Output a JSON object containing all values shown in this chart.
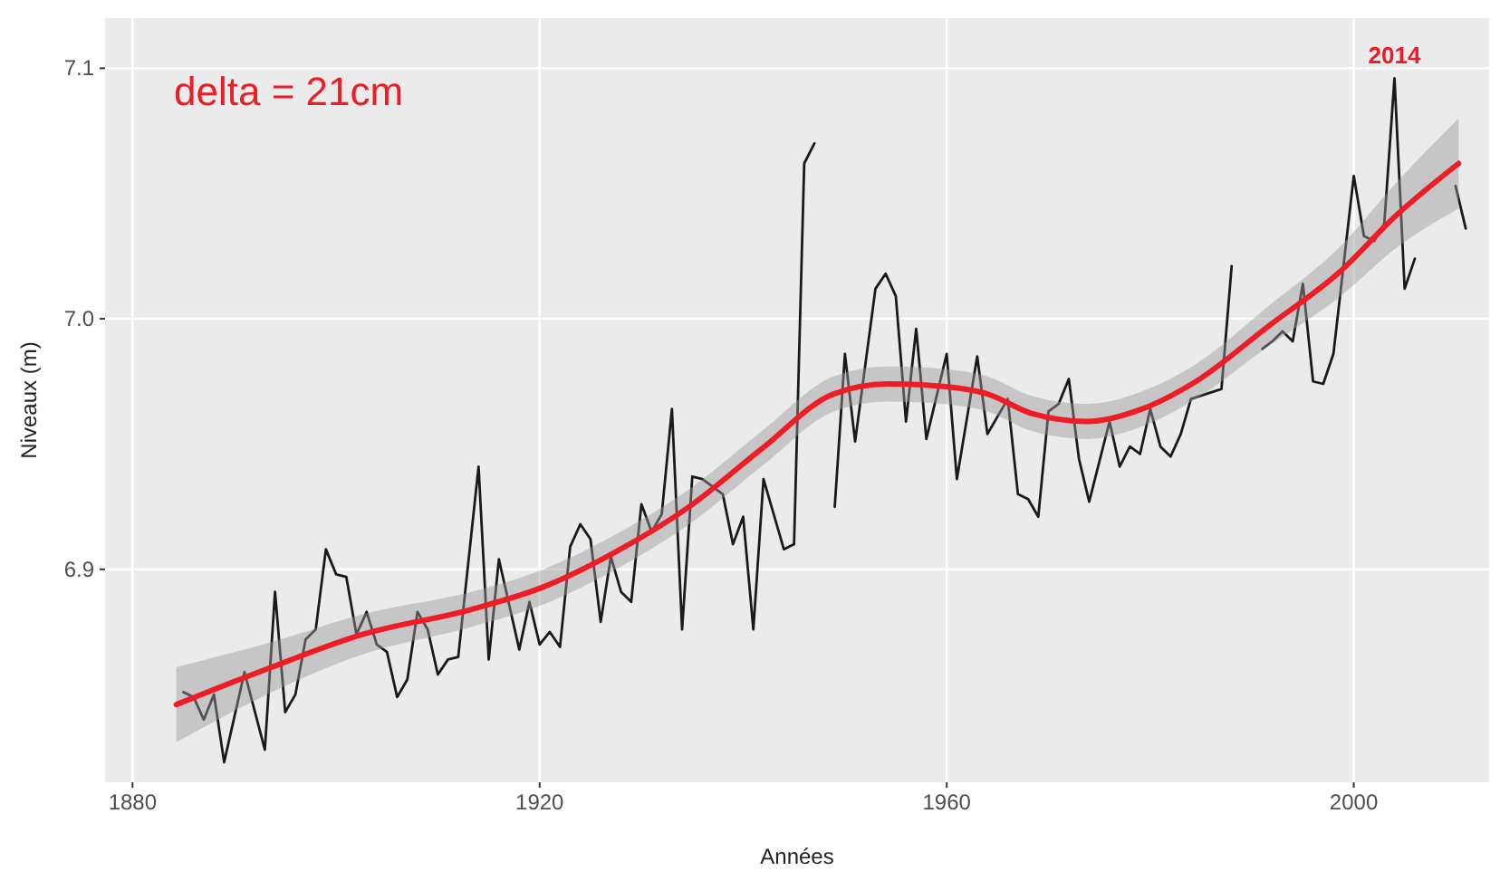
{
  "chart_data": {
    "type": "line",
    "xlabel": "Années",
    "ylabel": "Niveaux (m)",
    "annotations": [
      "delta = 21cm",
      "2014"
    ],
    "xlim": [
      1877.3,
      2013.3
    ],
    "xticks": [
      1880,
      1920,
      1960,
      2000
    ],
    "ylim": [
      6.815,
      7.12
    ],
    "yticks": [
      {
        "value": 6.9,
        "label": "6.9"
      },
      {
        "value": 7.0,
        "label": "7.0"
      },
      {
        "value": 7.1,
        "label": "7.1"
      }
    ],
    "grid": true,
    "line_style": "solid",
    "marker": "none",
    "series": [
      {
        "color": "#1a1a1a",
        "x": [
          1885,
          1886,
          1887,
          1888,
          1889,
          1891,
          1893,
          1894,
          1895,
          1896,
          1897,
          1898,
          1899,
          1900,
          1901,
          1902,
          1903,
          1904,
          1905,
          1906,
          1907,
          1908,
          1909,
          1910,
          1911,
          1912,
          1914,
          1915,
          1916,
          1918,
          1919,
          1920,
          1921,
          1922,
          1923,
          1924,
          1925,
          1926,
          1927,
          1928,
          1929,
          1930,
          1931,
          1932,
          1933,
          1934,
          1935,
          1936,
          1938,
          1939,
          1940,
          1941,
          1942,
          1944,
          1945,
          1946,
          1947,
          1948,
          1949,
          1950,
          1951,
          1953,
          1954,
          1955,
          1956,
          1957,
          1958,
          1960,
          1961,
          1963,
          1964,
          1966,
          1967,
          1968,
          1969,
          1970,
          1971,
          1972,
          1973,
          1974,
          1976,
          1977,
          1978,
          1979,
          1980,
          1981,
          1982,
          1983,
          1984,
          1987,
          1988,
          1989,
          1991,
          1992,
          1993,
          1994,
          1995,
          1996,
          1997,
          1998,
          2000,
          2001,
          2002,
          2003,
          2004,
          2005,
          2006,
          2007,
          2010,
          2011
        ],
        "values": [
          6.851,
          6.849,
          6.84,
          6.85,
          6.823,
          6.859,
          6.828,
          6.891,
          6.843,
          6.85,
          6.872,
          6.876,
          6.908,
          6.898,
          6.897,
          6.874,
          6.883,
          6.87,
          6.867,
          6.849,
          6.856,
          6.883,
          6.876,
          6.858,
          6.864,
          6.865,
          6.941,
          6.864,
          6.904,
          6.868,
          6.887,
          6.87,
          6.875,
          6.869,
          6.909,
          6.918,
          6.912,
          6.879,
          6.905,
          6.891,
          6.887,
          6.926,
          6.915,
          6.922,
          6.964,
          6.876,
          6.937,
          6.936,
          6.93,
          6.91,
          6.921,
          6.876,
          6.936,
          6.908,
          6.91,
          7.062,
          7.07,
          null,
          6.925,
          6.986,
          6.951,
          7.012,
          7.018,
          7.009,
          6.959,
          6.996,
          6.952,
          6.986,
          6.936,
          6.985,
          6.954,
          6.968,
          6.93,
          6.928,
          6.921,
          6.963,
          6.966,
          6.976,
          6.944,
          6.927,
          6.959,
          6.941,
          6.949,
          6.946,
          6.964,
          6.949,
          6.945,
          6.954,
          6.968,
          6.972,
          7.021,
          null,
          6.988,
          6.991,
          6.995,
          6.991,
          7.014,
          6.975,
          6.974,
          6.986,
          7.057,
          7.033,
          7.031,
          7.038,
          7.096,
          7.012,
          7.024,
          null,
          7.053,
          7.036
        ]
      },
      {
        "color": "#ee1c25",
        "x": [
          1884.3,
          1893.7,
          1902.6,
          1913.3,
          1920.4,
          1927.5,
          1934.7,
          1941.8,
          1948.9,
          1954.2,
          1959.6,
          1964.0,
          1968.5,
          1973.8,
          1979.2,
          1984.5,
          1991.6,
          1998.7,
          2004.1,
          2010.3
        ],
        "values": [
          6.846,
          6.861,
          6.874,
          6.884,
          6.893,
          6.907,
          6.925,
          6.948,
          6.97,
          6.974,
          6.973,
          6.97,
          6.962,
          6.959,
          6.964,
          6.975,
          6.997,
          7.019,
          7.041,
          7.062
        ],
        "lower": [
          6.831,
          6.851,
          6.866,
          6.877,
          6.886,
          6.9,
          6.918,
          6.941,
          6.963,
          6.967,
          6.966,
          6.963,
          6.955,
          6.952,
          6.957,
          6.968,
          6.989,
          7.009,
          7.028,
          7.044
        ],
        "upper": [
          6.861,
          6.871,
          6.882,
          6.891,
          6.9,
          6.914,
          6.932,
          6.955,
          6.977,
          6.981,
          6.98,
          6.977,
          6.969,
          6.966,
          6.971,
          6.982,
          7.005,
          7.029,
          7.054,
          7.08
        ]
      }
    ]
  }
}
